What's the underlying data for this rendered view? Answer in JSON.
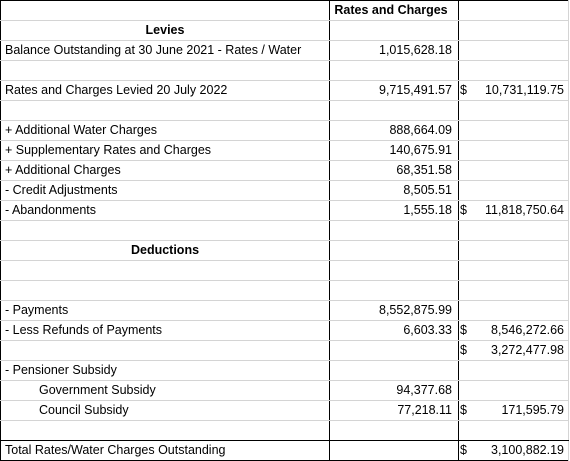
{
  "header": {
    "col_label": "",
    "col_rates": "Rates and Charges",
    "col_total": ""
  },
  "rows": [
    {
      "label": "Levies",
      "value": "",
      "cur": "",
      "total": "",
      "style": "heading"
    },
    {
      "label": "Balance Outstanding at 30 June 2021 - Rates / Water",
      "value": "1,015,628.18",
      "cur": "",
      "total": ""
    },
    {
      "label": "",
      "value": "",
      "cur": "",
      "total": ""
    },
    {
      "label": "Rates and Charges Levied 20 July 2022",
      "value": "9,715,491.57",
      "cur": "$",
      "total": "10,731,119.75"
    },
    {
      "label": "",
      "value": "",
      "cur": "",
      "total": ""
    },
    {
      "label": "+ Additional Water Charges",
      "value": "888,664.09",
      "cur": "",
      "total": ""
    },
    {
      "label": "+ Supplementary Rates and Charges",
      "value": "140,675.91",
      "cur": "",
      "total": ""
    },
    {
      "label": "+ Additional Charges",
      "value": "68,351.58",
      "cur": "",
      "total": ""
    },
    {
      "label": "- Credit Adjustments",
      "value": "8,505.51",
      "cur": "",
      "total": ""
    },
    {
      "label": "- Abandonments",
      "value": "1,555.18",
      "cur": "$",
      "total": "11,818,750.64"
    },
    {
      "label": "",
      "value": "",
      "cur": "",
      "total": ""
    },
    {
      "label": "Deductions",
      "value": "",
      "cur": "",
      "total": "",
      "style": "heading"
    },
    {
      "label": "",
      "value": "",
      "cur": "",
      "total": ""
    },
    {
      "label": "",
      "value": "",
      "cur": "",
      "total": ""
    },
    {
      "label": "- Payments",
      "value": "8,552,875.99",
      "cur": "",
      "total": ""
    },
    {
      "label": "- Less Refunds of Payments",
      "value": "6,603.33",
      "cur": "$",
      "total": "8,546,272.66"
    },
    {
      "label": "",
      "value": "",
      "cur": "$",
      "total": "3,272,477.98"
    },
    {
      "label": "- Pensioner Subsidy",
      "value": "",
      "cur": "",
      "total": ""
    },
    {
      "label": "Government Subsidy",
      "value": "94,377.68",
      "cur": "",
      "total": "",
      "style": "indent"
    },
    {
      "label": "Council Subsidy",
      "value": "77,218.11",
      "cur": "$",
      "total": "171,595.79",
      "style": "indent"
    },
    {
      "label": "",
      "value": "",
      "cur": "",
      "total": ""
    },
    {
      "label": "Total Rates/Water Charges Outstanding",
      "value": "",
      "cur": "$",
      "total": "3,100,882.19"
    }
  ]
}
